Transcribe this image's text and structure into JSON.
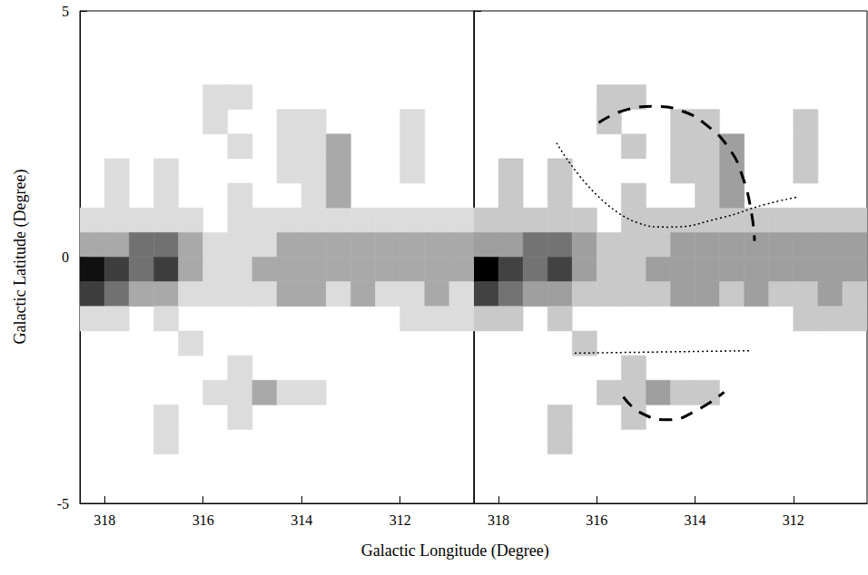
{
  "chart_data": {
    "type": "heatmap",
    "xlabel": "Galactic Longitude (Degree)",
    "ylabel": "Galactic Latitude (Degree)",
    "xlim": [
      318.5,
      310.5
    ],
    "ylim": [
      -5,
      5
    ],
    "xticks": [
      318,
      316,
      314,
      312
    ],
    "yticks": [
      -5,
      0,
      5
    ],
    "grid": false,
    "cell_size": 0.5,
    "vlim": [
      0,
      5
    ],
    "cells": [
      [
        318.25,
        0.75,
        1
      ],
      [
        317.75,
        0.75,
        1
      ],
      [
        317.25,
        0.75,
        1
      ],
      [
        316.75,
        0.75,
        1
      ],
      [
        316.25,
        0.75,
        1
      ],
      [
        315.25,
        0.75,
        1
      ],
      [
        314.75,
        0.75,
        1
      ],
      [
        314.25,
        0.75,
        1
      ],
      [
        313.75,
        0.75,
        1
      ],
      [
        313.25,
        0.75,
        1
      ],
      [
        312.75,
        0.75,
        1
      ],
      [
        312.25,
        0.75,
        1
      ],
      [
        311.75,
        0.75,
        1
      ],
      [
        311.25,
        0.75,
        1
      ],
      [
        310.75,
        0.75,
        1
      ],
      [
        318.25,
        0.25,
        2
      ],
      [
        317.75,
        0.25,
        2
      ],
      [
        317.25,
        0.25,
        3
      ],
      [
        316.75,
        0.25,
        3
      ],
      [
        316.25,
        0.25,
        2
      ],
      [
        315.75,
        0.25,
        1
      ],
      [
        315.25,
        0.25,
        1
      ],
      [
        314.75,
        0.25,
        1
      ],
      [
        314.25,
        0.25,
        2
      ],
      [
        313.75,
        0.25,
        2
      ],
      [
        313.25,
        0.25,
        2
      ],
      [
        312.75,
        0.25,
        2
      ],
      [
        312.25,
        0.25,
        2
      ],
      [
        311.75,
        0.25,
        2
      ],
      [
        311.25,
        0.25,
        2
      ],
      [
        310.75,
        0.25,
        2
      ],
      [
        318.25,
        -0.25,
        5
      ],
      [
        317.75,
        -0.25,
        4
      ],
      [
        317.25,
        -0.25,
        3
      ],
      [
        316.75,
        -0.25,
        4
      ],
      [
        316.25,
        -0.25,
        2
      ],
      [
        315.75,
        -0.25,
        1
      ],
      [
        315.25,
        -0.25,
        1
      ],
      [
        314.75,
        -0.25,
        2
      ],
      [
        314.25,
        -0.25,
        2
      ],
      [
        313.75,
        -0.25,
        2
      ],
      [
        313.25,
        -0.25,
        2
      ],
      [
        312.75,
        -0.25,
        2
      ],
      [
        312.25,
        -0.25,
        2
      ],
      [
        311.75,
        -0.25,
        2
      ],
      [
        311.25,
        -0.25,
        2
      ],
      [
        310.75,
        -0.25,
        2
      ],
      [
        318.25,
        -0.75,
        4
      ],
      [
        317.75,
        -0.75,
        3
      ],
      [
        317.25,
        -0.75,
        2
      ],
      [
        316.75,
        -0.75,
        2
      ],
      [
        316.25,
        -0.75,
        1
      ],
      [
        315.75,
        -0.75,
        1
      ],
      [
        315.25,
        -0.75,
        1
      ],
      [
        314.75,
        -0.75,
        1
      ],
      [
        314.25,
        -0.75,
        2
      ],
      [
        313.75,
        -0.75,
        2
      ],
      [
        313.25,
        -0.75,
        1
      ],
      [
        312.75,
        -0.75,
        2
      ],
      [
        312.25,
        -0.75,
        1
      ],
      [
        311.75,
        -0.75,
        1
      ],
      [
        311.25,
        -0.75,
        2
      ],
      [
        310.75,
        -0.75,
        1
      ],
      [
        318.25,
        -1.25,
        1
      ],
      [
        317.75,
        -1.25,
        1
      ],
      [
        316.75,
        -1.25,
        1
      ],
      [
        311.75,
        -1.25,
        1
      ],
      [
        311.25,
        -1.25,
        1
      ],
      [
        310.75,
        -1.25,
        1
      ],
      [
        316.25,
        -1.75,
        1
      ],
      [
        317.75,
        1.25,
        1
      ],
      [
        316.75,
        1.25,
        1
      ],
      [
        315.25,
        1.25,
        1
      ],
      [
        313.75,
        1.25,
        1
      ],
      [
        313.25,
        1.25,
        2
      ],
      [
        317.75,
        1.75,
        1
      ],
      [
        316.75,
        1.75,
        1
      ],
      [
        314.25,
        1.75,
        1
      ],
      [
        313.75,
        1.75,
        1
      ],
      [
        313.25,
        1.75,
        2
      ],
      [
        311.75,
        1.75,
        1
      ],
      [
        315.25,
        2.25,
        1
      ],
      [
        314.25,
        2.25,
        1
      ],
      [
        313.75,
        2.25,
        1
      ],
      [
        313.25,
        2.25,
        2
      ],
      [
        311.75,
        2.25,
        1
      ],
      [
        315.75,
        2.75,
        1
      ],
      [
        314.25,
        2.75,
        1
      ],
      [
        313.75,
        2.75,
        1
      ],
      [
        311.75,
        2.75,
        1
      ],
      [
        315.75,
        3.25,
        1
      ],
      [
        315.25,
        3.25,
        1
      ],
      [
        315.25,
        -2.25,
        1
      ],
      [
        315.75,
        -2.75,
        1
      ],
      [
        315.25,
        -2.75,
        1
      ],
      [
        314.75,
        -2.75,
        2
      ],
      [
        314.25,
        -2.75,
        1
      ],
      [
        313.75,
        -2.75,
        1
      ],
      [
        316.75,
        -3.25,
        1
      ],
      [
        315.25,
        -3.25,
        1
      ],
      [
        316.75,
        -3.75,
        1
      ]
    ],
    "panels": [
      {
        "type": "contour"
      },
      {
        "type": "heatmap",
        "tick_labels": "x",
        "annotations": [
          {
            "line_style": "dashed",
            "x": [
              315.96,
              315.37,
              314.81,
              314.25,
              313.78,
              313.31,
              313.03,
              312.85,
              312.79
            ],
            "y": [
              2.73,
              3.0,
              3.06,
              2.96,
              2.69,
              2.21,
              1.62,
              0.88,
              0.33
            ]
          },
          {
            "line_style": "dashed",
            "x": [
              315.46,
              315.09,
              314.53,
              313.97,
              313.41
            ],
            "y": [
              -2.84,
              -3.17,
              -3.3,
              -3.11,
              -2.74
            ]
          },
          {
            "line_style": "dotted",
            "x": [
              316.82,
              315.18,
              314.53,
              313.5,
              312.57,
              311.91
            ],
            "y": [
              2.32,
              0.7,
              0.61,
              0.79,
              1.07,
              1.22
            ]
          },
          {
            "line_style": "dotted",
            "x": [
              316.45,
              312.85
            ],
            "y": [
              -1.95,
              -1.9
            ]
          }
        ]
      }
    ]
  }
}
